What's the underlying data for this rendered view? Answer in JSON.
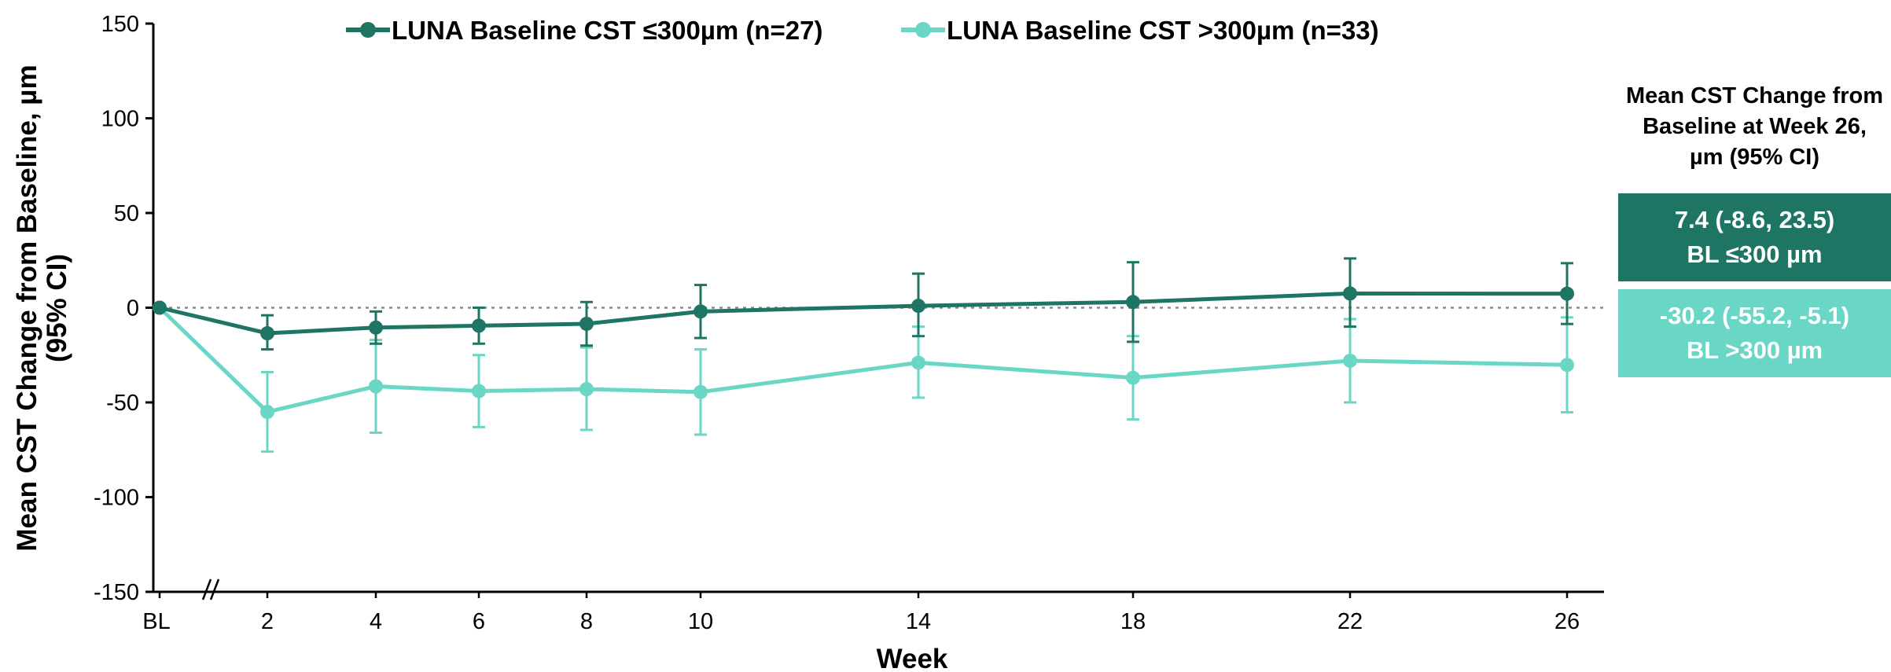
{
  "chart_data": {
    "type": "line",
    "title": "",
    "xlabel": "Week",
    "ylabel": "Mean CST Change from Baseline, µm (95% CI)",
    "ylim": [
      -150,
      150
    ],
    "yticks": [
      150,
      100,
      50,
      0,
      -50,
      -100,
      -150
    ],
    "x_positions": [
      0,
      2,
      4,
      6,
      8,
      10,
      14,
      18,
      22,
      26
    ],
    "x_labels": [
      "BL",
      "2",
      "4",
      "6",
      "8",
      "10",
      "14",
      "18",
      "22",
      "26"
    ],
    "axis_break": true,
    "reference_line": 0,
    "legend_position": "top-center",
    "series": [
      {
        "name": "LUNA Baseline CST ≤300µm (n=27)",
        "color": "#1e7563",
        "values": [
          0,
          -13.5,
          -10.5,
          -9.5,
          -8.5,
          -2,
          1,
          3,
          7.5,
          7.4
        ],
        "ci_low": [
          null,
          -22,
          -19,
          -19,
          -20,
          -16,
          -15,
          -18,
          -10,
          -8.6
        ],
        "ci_high": [
          null,
          -4,
          -2,
          0,
          3,
          12,
          18,
          24,
          26,
          23.5
        ]
      },
      {
        "name": "LUNA Baseline CST >300µm (n=33)",
        "color": "#69d6c6",
        "values": [
          0,
          -55,
          -41.5,
          -44,
          -43,
          -44.5,
          -29,
          -37,
          -28,
          -30.2
        ],
        "ci_low": [
          null,
          -76,
          -66,
          -63,
          -64.5,
          -67,
          -47.5,
          -59,
          -50,
          -55.2
        ],
        "ci_high": [
          null,
          -34,
          -17,
          -25,
          -21,
          -22,
          -10,
          -15,
          -6,
          -5.1
        ]
      }
    ]
  },
  "side_panel": {
    "title": "Mean CST Change from\nBaseline at Week 26,\nµm (95% CI)",
    "boxes": [
      {
        "value": "7.4 (-8.6, 23.5)",
        "label": "BL ≤300 µm",
        "color": "#1e7563"
      },
      {
        "value": "-30.2 (-55.2, -5.1)",
        "label": "BL >300 µm",
        "color": "#69d6c6"
      }
    ]
  }
}
